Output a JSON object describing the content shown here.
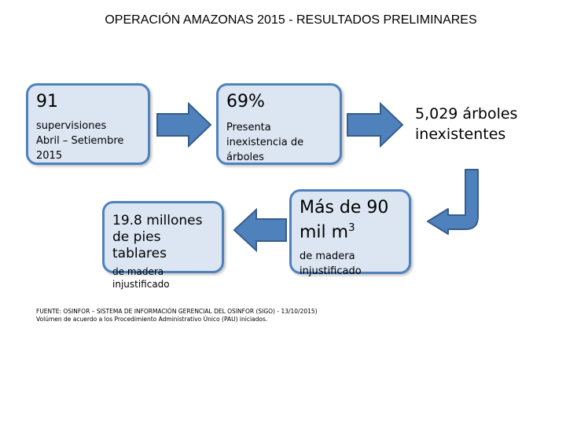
{
  "title": "OPERACIÓN AMAZONAS 2015 -  RESULTADOS PRELIMINARES",
  "box1": {
    "value": "91",
    "line1": "supervisiones",
    "line2": "Abril – Setiembre",
    "line3": "2015"
  },
  "box2": {
    "value": "69%",
    "line1": "Presenta",
    "line2": "inexistencia de",
    "line3": "árboles"
  },
  "box3": {
    "line1": "5,029 árboles",
    "line2": "inexistentes"
  },
  "box4": {
    "value_prefix": "Más de 90",
    "value_unit": "mil m",
    "value_exp": "3",
    "line1": "de madera",
    "line2": "injustificado"
  },
  "box5": {
    "line1": "19.8 millones",
    "line2": "de pies tablares",
    "line3": "de madera injustificado"
  },
  "source": {
    "line1": "FUENTE: OSINFOR – SISTEMA DE INFORMACIÓN GERENCIAL DEL OSINFOR (SIGO) - 13/10/2015)",
    "line2": "Volúmen de acuerdo a los  Procedimiento Administrativo Único (PAU) iniciados."
  },
  "colors": {
    "box_fill": "#dce6f2",
    "box_border": "#4f81bd",
    "arrow_fill": "#4f81bd",
    "arrow_stroke": "#385d8a"
  }
}
